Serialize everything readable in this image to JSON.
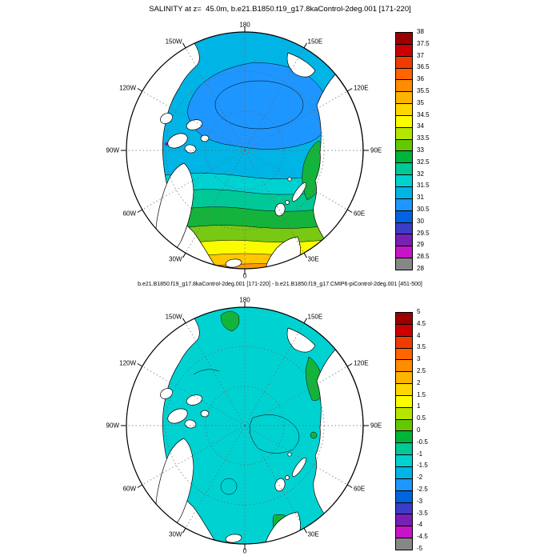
{
  "page": {
    "background": "#ffffff"
  },
  "top_plot": {
    "title": "SALINITY at z=  45.0m, b.e21.B1850.f19_g17.8kaControl-2deg.001 [171-220]",
    "lon_labels": [
      {
        "label": "180",
        "angle": 0
      },
      {
        "label": "150E",
        "angle": 30
      },
      {
        "label": "120E",
        "angle": 60
      },
      {
        "label": "90E",
        "angle": 90
      },
      {
        "label": "60E",
        "angle": 120
      },
      {
        "label": "30E",
        "angle": 150
      },
      {
        "label": "0",
        "angle": 180
      },
      {
        "label": "30W",
        "angle": 210
      },
      {
        "label": "60W",
        "angle": 240
      },
      {
        "label": "90W",
        "angle": 270
      },
      {
        "label": "120W",
        "angle": 300
      },
      {
        "label": "150W",
        "angle": 330
      }
    ],
    "colorbar": {
      "labels": [
        "38",
        "37.5",
        "37",
        "36.5",
        "36",
        "35.5",
        "35",
        "34.5",
        "34",
        "33.5",
        "33",
        "32.5",
        "32",
        "31.5",
        "31",
        "30.5",
        "30",
        "29.5",
        "29",
        "28.5",
        "28"
      ],
      "colors": [
        "#9b0000",
        "#cd0000",
        "#f03c00",
        "#ff6400",
        "#ff8c00",
        "#ffb400",
        "#ffd700",
        "#fcfc00",
        "#b4e600",
        "#64c800",
        "#00b43c",
        "#00c896",
        "#00d2d2",
        "#00b4e6",
        "#1e96ff",
        "#0064e1",
        "#3c3cc8",
        "#7820b4",
        "#c814c8",
        "#878787"
      ]
    }
  },
  "bottom_plot": {
    "title": "b.e21.B1850.f19_g17.8kaControl-2deg.001 [171-220] - b.e21.B1850.f19_g17.CMIP6-piControl-2deg.001 [451-500]",
    "lon_labels": [
      {
        "label": "180",
        "angle": 0
      },
      {
        "label": "150E",
        "angle": 30
      },
      {
        "label": "120E",
        "angle": 60
      },
      {
        "label": "90E",
        "angle": 90
      },
      {
        "label": "60E",
        "angle": 120
      },
      {
        "label": "30E",
        "angle": 150
      },
      {
        "label": "0",
        "angle": 180
      },
      {
        "label": "30W",
        "angle": 210
      },
      {
        "label": "60W",
        "angle": 240
      },
      {
        "label": "90W",
        "angle": 270
      },
      {
        "label": "120W",
        "angle": 300
      },
      {
        "label": "150W",
        "angle": 330
      }
    ],
    "colorbar": {
      "labels": [
        "5",
        "4.5",
        "4",
        "3.5",
        "3",
        "2.5",
        "2",
        "1.5",
        "1",
        "0.5",
        "0",
        "-0.5",
        "-1",
        "-1.5",
        "-2",
        "-2.5",
        "-3",
        "-3.5",
        "-4",
        "-4.5",
        "-5"
      ],
      "colors": [
        "#9b0000",
        "#cd0000",
        "#f03c00",
        "#ff6400",
        "#ff8c00",
        "#ffb400",
        "#ffd700",
        "#fcfc00",
        "#b4e600",
        "#64c800",
        "#00b43c",
        "#00c896",
        "#00d2d2",
        "#00b4e6",
        "#1e96ff",
        "#0064e1",
        "#3c3cc8",
        "#7820b4",
        "#c814c8",
        "#878787"
      ]
    }
  },
  "chart_data": [
    {
      "type": "heatmap",
      "title": "SALINITY at z=  45.0m, b.e21.B1850.f19_g17.8kaControl-2deg.001 [171-220]",
      "projection": "north polar stereographic, 180 at top, 0 at bottom, longitude labels every 30 degrees",
      "variable": "SALINITY",
      "depth_m": 45.0,
      "contour_levels": [
        28,
        28.5,
        29,
        29.5,
        30,
        30.5,
        31,
        31.5,
        32,
        32.5,
        33,
        33.5,
        34,
        34.5,
        35,
        35.5,
        36,
        36.5,
        37,
        37.5,
        38
      ],
      "value_range": [
        28,
        38
      ],
      "colorbar_colors": [
        "#9b0000",
        "#cd0000",
        "#f03c00",
        "#ff6400",
        "#ff8c00",
        "#ffb400",
        "#ffd700",
        "#fcfc00",
        "#b4e600",
        "#64c800",
        "#00b43c",
        "#00c896",
        "#00d2d2",
        "#00b4e6",
        "#1e96ff",
        "#0064e1",
        "#3c3cc8",
        "#7820b4",
        "#c814c8",
        "#878787"
      ],
      "legend_position": "right",
      "summary": "Central Arctic basin mostly 31-31.5 (light blue) with a fresher 30.5-31 (blue) patch toward the 180/Canada Basin side; salinity increases toward the Atlantic sector through cyan 31.5-32, teal 32-32.5, greens 32.5-33.5, yellow 34-34.5 and orange 35-35.5 in the Nordic Seas/North Atlantic between 60W and 30E; small very fresh 28.5-29.5 purple/magenta patches in Baffin Bay and the Canadian Archipelago; a green tongue of 32.5-33.5 water extends along the Barents/Kara coast toward the pole; land is white with black coastlines."
    },
    {
      "type": "heatmap",
      "title": "b.e21.B1850.f19_g17.8kaControl-2deg.001 [171-220] - b.e21.B1850.f19_g17.CMIP6-piControl-2deg.001 [451-500]",
      "projection": "north polar stereographic, 180 at top, 0 at bottom, longitude labels every 30 degrees",
      "variable": "SALINITY difference (8kaControl minus CMIP6-piControl)",
      "depth_m": 45.0,
      "contour_levels": [
        -5,
        -4.5,
        -4,
        -3.5,
        -3,
        -2.5,
        -2,
        -1.5,
        -1,
        -0.5,
        0,
        0.5,
        1,
        1.5,
        2,
        2.5,
        3,
        3.5,
        4,
        4.5,
        5
      ],
      "value_range": [
        -5,
        5
      ],
      "colorbar_colors": [
        "#9b0000",
        "#cd0000",
        "#f03c00",
        "#ff6400",
        "#ff8c00",
        "#ffb400",
        "#ffd700",
        "#fcfc00",
        "#b4e600",
        "#64c800",
        "#00b43c",
        "#00c896",
        "#00d2d2",
        "#00b4e6",
        "#1e96ff",
        "#0064e1",
        "#3c3cc8",
        "#7820b4",
        "#c814c8",
        "#878787"
      ],
      "legend_position": "right",
      "summary": "Difference field is nearly uniform cyan (-1 to -0.5) over the whole Arctic basin, with scattered green patches (0 to +1) along the East Greenland coast, near Scandinavia, along the Siberian coast and near the Bering Strait; land is white with black coastlines."
    }
  ]
}
